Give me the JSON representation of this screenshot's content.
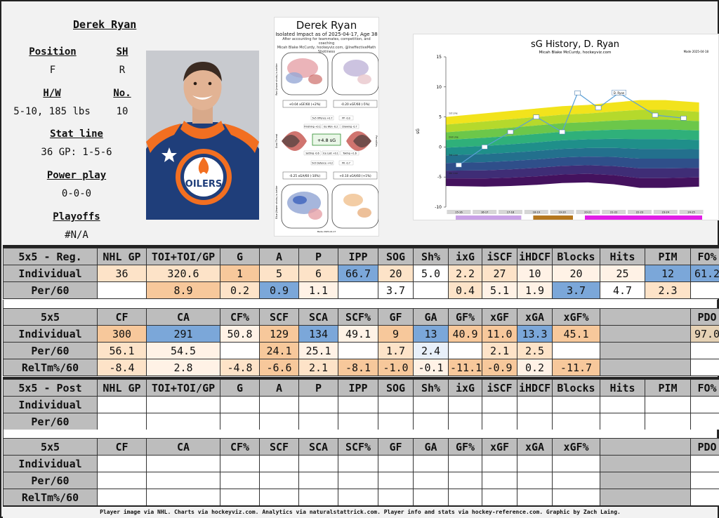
{
  "player": {
    "name": "Derek Ryan",
    "position_label": "Position",
    "position": "F",
    "shoots_label": "SH",
    "shoots": "R",
    "hw_label": "H/W",
    "hw": "5-10, 185 lbs",
    "number_label": "No.",
    "number": "10",
    "statline_label": "Stat line",
    "statline": "36 GP: 1-5-6",
    "pp_label": "Power play",
    "pp": "0-0-0",
    "playoffs_label": "Playoffs",
    "playoffs": "#N/A"
  },
  "jersey": {
    "wordmark": "OILERS",
    "brand_colors": {
      "blue": "#1f3e7a",
      "orange": "#f26f21"
    }
  },
  "impact_chart": {
    "title": "Derek Ryan",
    "subtitle": "Isolated Impact as of 2025-04-17, Age 38",
    "note1": "After accounting for teammates, competition, and coaching",
    "note2": "Micah Blake McCurdy, hockeyviz.com, @IneffectiveMath",
    "note3": "Shotiness",
    "top_left_box": "+0.04 xGF/60 (+2%)",
    "top_right_box": "-0.20 xGF/60 (-5%)",
    "bottom_left_box": "-0.25 xGA/60 (-10%)",
    "bottom_right_box": "+0.10 xGA/60 (+1%)",
    "center": "+4.8 sG",
    "left_axis_top": "Red (more shots) is better",
    "left_axis_mid": "Goal Threat",
    "left_axis_bottom": "Blue (fewer shots) is better",
    "right_axis_mid": "Penalties",
    "boxes": [
      "5v5 Offence +0.7",
      "PP -0.0",
      "Finishing +0.1",
      "Ice Won -0.2",
      "Drawing -0.7",
      "Setting -0.6",
      "Ice Lost +0.1",
      "Taking +1.6",
      "5v5 Defence +4.2",
      "PK -0.7"
    ],
    "footer": "Made 2025-04-17"
  },
  "sg_chart": {
    "title": "sG History, D. Ryan",
    "subtitle": "Micah Blake McCurdy, hockeyviz.com",
    "corner": "Made 2025-04-18",
    "ylabel": "sG",
    "yticks": [
      "15",
      "10",
      "5",
      "0",
      "-5",
      "-10"
    ],
    "band_labels": [
      "1st Line",
      "2nd Line",
      "3rd Line",
      "4th Line"
    ],
    "seasons": [
      "15-16",
      "16-17",
      "17-18",
      "18-19",
      "19-20",
      "20-21",
      "21-22",
      "22-23",
      "23-24",
      "24-25"
    ],
    "team_strip": [
      {
        "color": "#c9a2e6",
        "from": 0,
        "to": 3
      },
      {
        "color": "#b5771f",
        "from": 3,
        "to": 5
      },
      {
        "color": "#e11ee6",
        "from": 5,
        "to": 10
      }
    ],
    "callout": "D. Ryan"
  },
  "chart_data": {
    "type": "line",
    "title": "sG History, D. Ryan",
    "ylabel": "sG",
    "ylim": [
      -10,
      15
    ],
    "categories": [
      "15-16",
      "16-17",
      "17-18",
      "18-19",
      "19-20",
      "20-21",
      "21-22",
      "22-23",
      "23-24",
      "24-25"
    ],
    "x": [
      1,
      2,
      3,
      4,
      5,
      5.6,
      6.4,
      7.2,
      8.6,
      9.7
    ],
    "values": [
      -3,
      0,
      2.5,
      5,
      2.5,
      9,
      6.5,
      9,
      5.3,
      4.8
    ],
    "series": [
      {
        "values": [
          -3,
          0,
          2.5,
          5,
          2.5,
          9,
          6.5,
          9,
          5.3,
          4.8
        ]
      }
    ]
  },
  "colors": {
    "orange_dark": "#f0a56a",
    "orange_mid": "#f7c89b",
    "orange_light": "#fde3c8",
    "orange_pale": "#fff2e6",
    "blue_dark": "#7ba7d9",
    "blue_light": "#c6dbef",
    "blue_pale": "#e8f0fa",
    "tan": "#e6d2b5"
  },
  "reg_row1": {
    "headers": [
      "5x5 - Reg.",
      "NHL GP",
      "TOI+TOI/GP",
      "G",
      "A",
      "P",
      "IPP",
      "SOG",
      "Sh%",
      "ixG",
      "iSCF",
      "iHDCF",
      "Blocks",
      "Hits",
      "PIM",
      "FO%"
    ],
    "rows": [
      {
        "cells": [
          "Individual",
          "36",
          "320.6",
          "1",
          "5",
          "6",
          "66.7",
          "20",
          "5.0",
          "2.2",
          "27",
          "10",
          "20",
          "25",
          "12",
          "61.2"
        ],
        "shade": [
          "",
          "orange_light",
          "orange_light",
          "orange_mid",
          "orange_light",
          "orange_light",
          "blue_dark",
          "orange_light",
          "",
          "orange_light",
          "orange_light",
          "orange_pale",
          "orange_pale",
          "orange_pale",
          "blue_dark",
          "blue_dark"
        ]
      },
      {
        "cells": [
          "Per/60",
          "",
          "8.9",
          "0.2",
          "0.9",
          "1.1",
          "",
          "3.7",
          "",
          "0.4",
          "5.1",
          "1.9",
          "3.7",
          "4.7",
          "2.3",
          ""
        ],
        "shade": [
          "",
          "",
          "orange_mid",
          "orange_light",
          "blue_dark",
          "orange_pale",
          "",
          "",
          "",
          "orange_light",
          "orange_pale",
          "orange_pale",
          "blue_dark",
          "",
          "orange_light",
          ""
        ]
      }
    ]
  },
  "reg_row2": {
    "headers": [
      "5x5",
      "CF",
      "CA",
      "CF%",
      "SCF",
      "SCA",
      "SCF%",
      "GF",
      "GA",
      "GF%",
      "xGF",
      "xGA",
      "xGF%",
      "",
      "PDO"
    ],
    "rows": [
      {
        "cells": [
          "Individual",
          "300",
          "291",
          "50.8",
          "129",
          "134",
          "49.1",
          "9",
          "13",
          "40.9",
          "11.0",
          "13.3",
          "45.1",
          "",
          "97.0"
        ],
        "shade": [
          "",
          "orange_mid",
          "blue_dark",
          "orange_pale",
          "orange_mid",
          "blue_dark",
          "orange_pale",
          "orange_mid",
          "blue_dark",
          "orange_mid",
          "orange_mid",
          "blue_dark",
          "orange_mid",
          "gap",
          "tan"
        ]
      },
      {
        "cells": [
          "Per/60",
          "56.1",
          "54.5",
          "",
          "24.1",
          "25.1",
          "",
          "1.7",
          "2.4",
          "",
          "2.1",
          "2.5",
          "",
          "",
          ""
        ],
        "shade": [
          "",
          "orange_light",
          "orange_pale",
          "",
          "orange_mid",
          "orange_pale",
          "",
          "orange_light",
          "blue_pale",
          "",
          "orange_light",
          "orange_light",
          "",
          "gap",
          ""
        ]
      },
      {
        "cells": [
          "RelTm%/60",
          "-8.4",
          "2.8",
          "-4.8",
          "-6.6",
          "2.1",
          "-8.1",
          "-1.0",
          "-0.1",
          "-11.1",
          "-0.9",
          "0.2",
          "-11.7",
          "",
          ""
        ],
        "shade": [
          "",
          "orange_light",
          "orange_pale",
          "orange_light",
          "orange_mid",
          "orange_light",
          "orange_mid",
          "orange_mid",
          "orange_pale",
          "orange_mid",
          "orange_mid",
          "orange_pale",
          "orange_mid",
          "gap",
          ""
        ]
      }
    ]
  },
  "post_row1": {
    "headers": [
      "5x5 - Post",
      "NHL GP",
      "TOI+TOI/GP",
      "G",
      "A",
      "P",
      "IPP",
      "SOG",
      "Sh%",
      "ixG",
      "iSCF",
      "iHDCF",
      "Blocks",
      "Hits",
      "PIM",
      "FO%"
    ],
    "labels": [
      "Individual",
      "Per/60"
    ]
  },
  "post_row2": {
    "headers": [
      "5x5",
      "CF",
      "CA",
      "CF%",
      "SCF",
      "SCA",
      "SCF%",
      "GF",
      "GA",
      "GF%",
      "xGF",
      "xGA",
      "xGF%",
      "",
      "PDO"
    ],
    "labels": [
      "Individual",
      "Per/60",
      "RelTm%/60"
    ]
  },
  "footer": "Player image via NHL. Charts via hockeyviz.com. Analytics via naturalstattrick.com. Player info and stats via hockey-reference.com. Graphic by Zach Laing."
}
